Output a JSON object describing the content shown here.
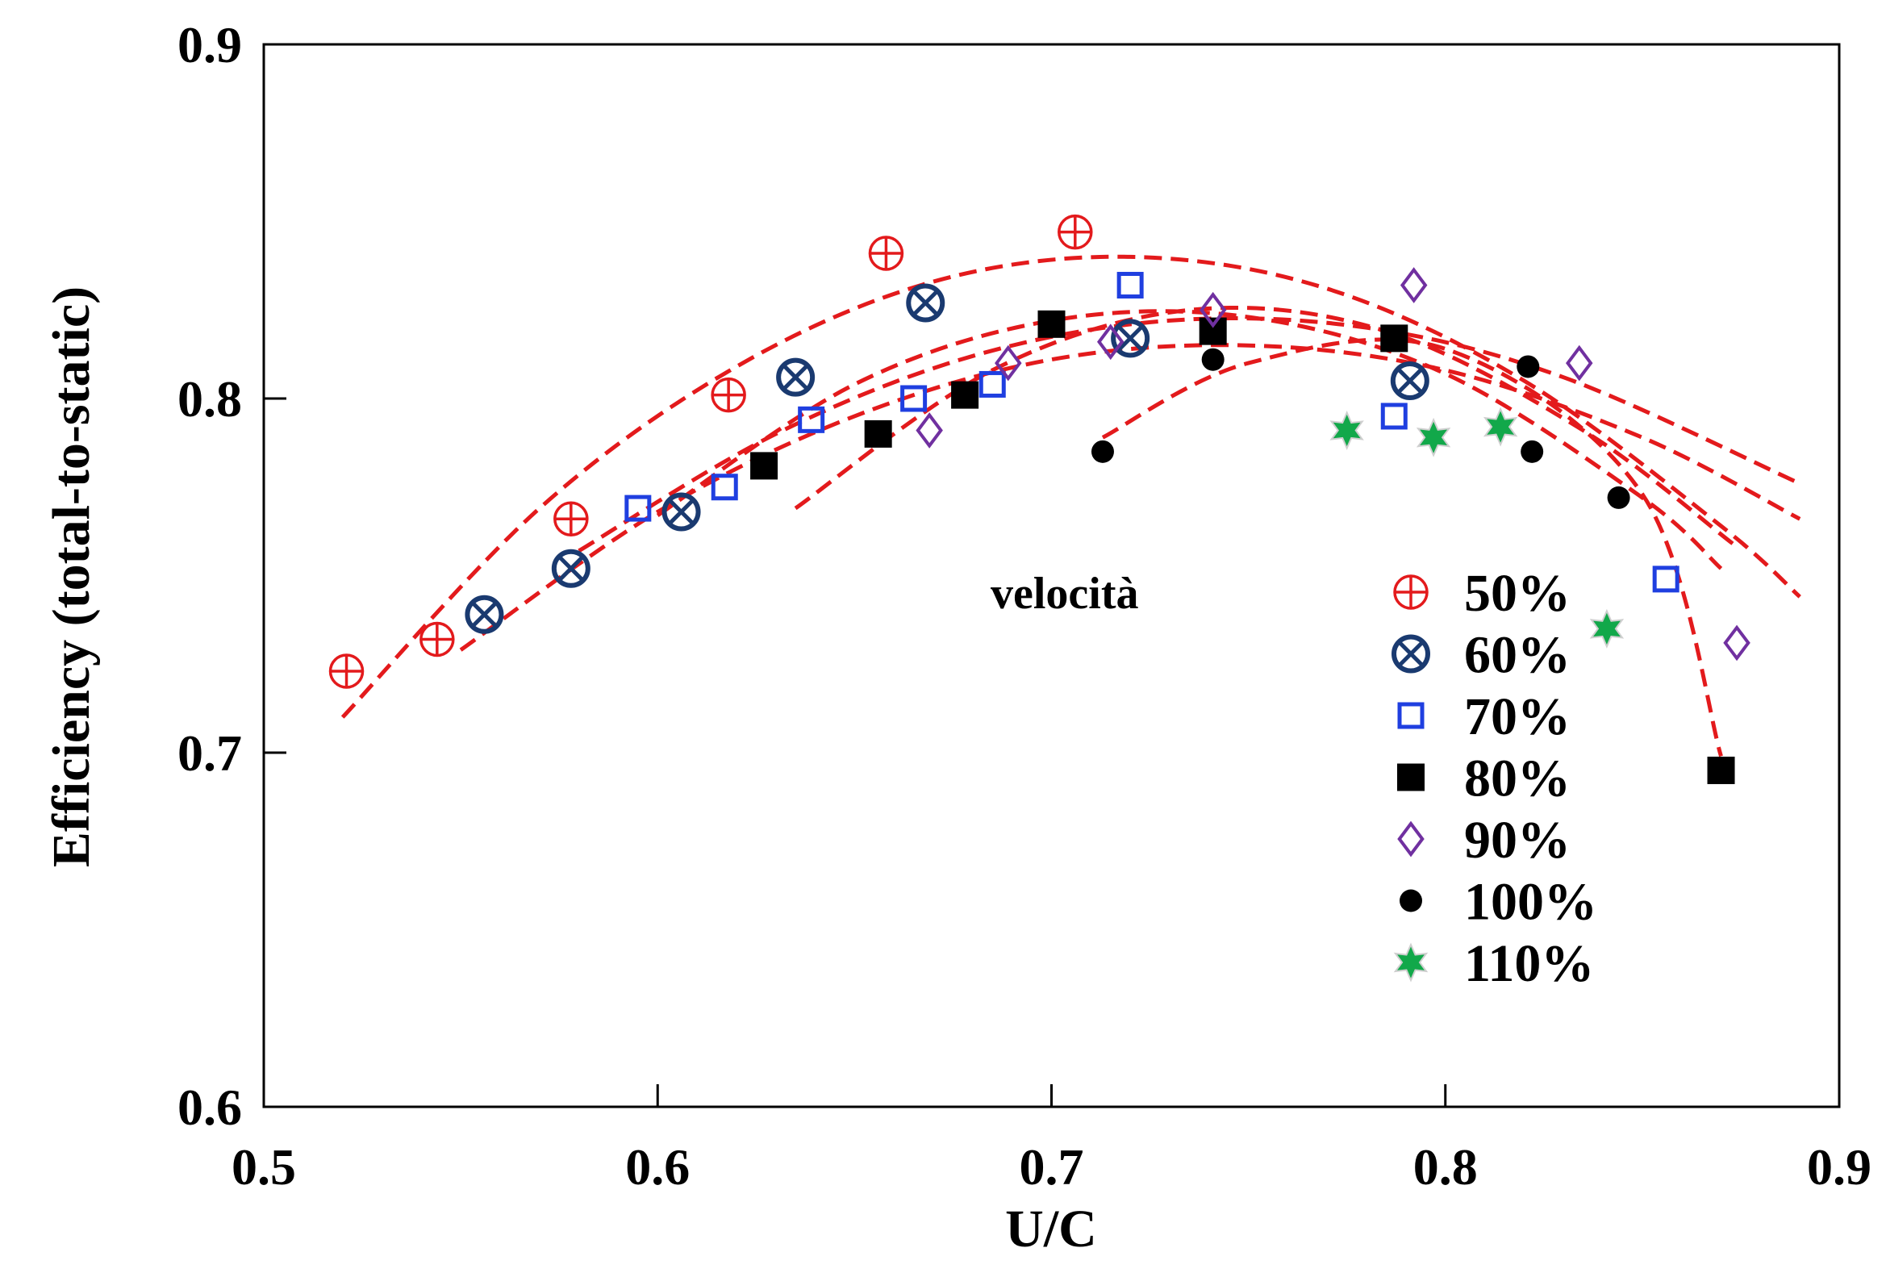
{
  "chart_data": {
    "type": "scatter",
    "title": "",
    "xlabel": "U/C",
    "ylabel": "Efficiency (total-to-static)",
    "xlim": [
      0.5,
      0.9
    ],
    "ylim": [
      0.6,
      0.9
    ],
    "xticks": [
      0.5,
      0.6,
      0.7,
      0.8,
      0.9
    ],
    "yticks": [
      0.6,
      0.7,
      0.8,
      0.9
    ],
    "xtick_labels": [
      "0.5",
      "0.6",
      "0.7",
      "0.8",
      "0.9"
    ],
    "ytick_labels": [
      "0.6",
      "0.7",
      "0.8",
      "0.9"
    ],
    "annotation": "velocità",
    "legend_position": "right-middle",
    "fit_color": "#e31a1c",
    "series": [
      {
        "name": "50%",
        "marker": "circle-plus",
        "color": "#e31a1c",
        "x": [
          0.521,
          0.544,
          0.578,
          0.618,
          0.658,
          0.706
        ],
        "y": [
          0.723,
          0.732,
          0.766,
          0.801,
          0.841,
          0.847
        ],
        "fit": {
          "x": [
            0.52,
            0.57,
            0.62,
            0.67,
            0.72,
            0.77,
            0.82,
            0.87,
            0.89
          ],
          "y": [
            0.71,
            0.769,
            0.809,
            0.833,
            0.84,
            0.831,
            0.805,
            0.764,
            0.744
          ]
        }
      },
      {
        "name": "60%",
        "marker": "circle-x",
        "color": "#1a3a70",
        "x": [
          0.556,
          0.578,
          0.606,
          0.635,
          0.668,
          0.72,
          0.791
        ],
        "y": [
          0.739,
          0.752,
          0.768,
          0.806,
          0.827,
          0.817,
          0.805
        ],
        "fit": {
          "x": [
            0.55,
            0.6,
            0.65,
            0.7,
            0.75,
            0.8,
            0.85,
            0.89
          ],
          "y": [
            0.729,
            0.768,
            0.795,
            0.811,
            0.815,
            0.808,
            0.789,
            0.766
          ]
        }
      },
      {
        "name": "70%",
        "marker": "square-open",
        "color": "#1f3fe0",
        "x": [
          0.595,
          0.617,
          0.639,
          0.665,
          0.685,
          0.72,
          0.787,
          0.856
        ],
        "y": [
          0.769,
          0.775,
          0.794,
          0.8,
          0.804,
          0.832,
          0.795,
          0.749
        ],
        "fit": {
          "x": [
            0.58,
            0.63,
            0.68,
            0.73,
            0.78,
            0.83,
            0.89
          ],
          "y": [
            0.757,
            0.79,
            0.812,
            0.822,
            0.82,
            0.806,
            0.776
          ]
        }
      },
      {
        "name": "80%",
        "marker": "square-filled",
        "color": "#000000",
        "x": [
          0.627,
          0.656,
          0.678,
          0.7,
          0.741,
          0.787,
          0.87
        ],
        "y": [
          0.781,
          0.79,
          0.801,
          0.821,
          0.819,
          0.817,
          0.695
        ],
        "fit": {
          "x": [
            0.6,
            0.65,
            0.7,
            0.75,
            0.8,
            0.85,
            0.87
          ],
          "y": [
            0.767,
            0.804,
            0.822,
            0.823,
            0.807,
            0.772,
            0.752
          ]
        }
      },
      {
        "name": "90%",
        "marker": "diamond-open",
        "color": "#7030a0",
        "x": [
          0.669,
          0.689,
          0.715,
          0.741,
          0.792,
          0.834,
          0.874
        ],
        "y": [
          0.791,
          0.81,
          0.816,
          0.825,
          0.832,
          0.81,
          0.731
        ],
        "fit": {
          "x": [
            0.635,
            0.685,
            0.735,
            0.785,
            0.835,
            0.873
          ],
          "y": [
            0.769,
            0.808,
            0.825,
            0.819,
            0.791,
            0.759
          ]
        }
      },
      {
        "name": "100%",
        "marker": "circle-filled",
        "color": "#000000",
        "x": [
          0.713,
          0.741,
          0.821,
          0.822,
          0.844
        ],
        "y": [
          0.785,
          0.811,
          0.809,
          0.785,
          0.772
        ],
        "fit": {
          "x": [
            0.713,
            0.75,
            0.8,
            0.85,
            0.87
          ],
          "y": [
            0.789,
            0.81,
            0.814,
            0.773,
            0.699
          ]
        }
      },
      {
        "name": "110%",
        "marker": "star",
        "color": "#12a84a",
        "x": [
          0.775,
          0.797,
          0.814,
          0.841
        ],
        "y": [
          0.791,
          0.789,
          0.792,
          0.735
        ],
        "fit": null
      }
    ]
  }
}
